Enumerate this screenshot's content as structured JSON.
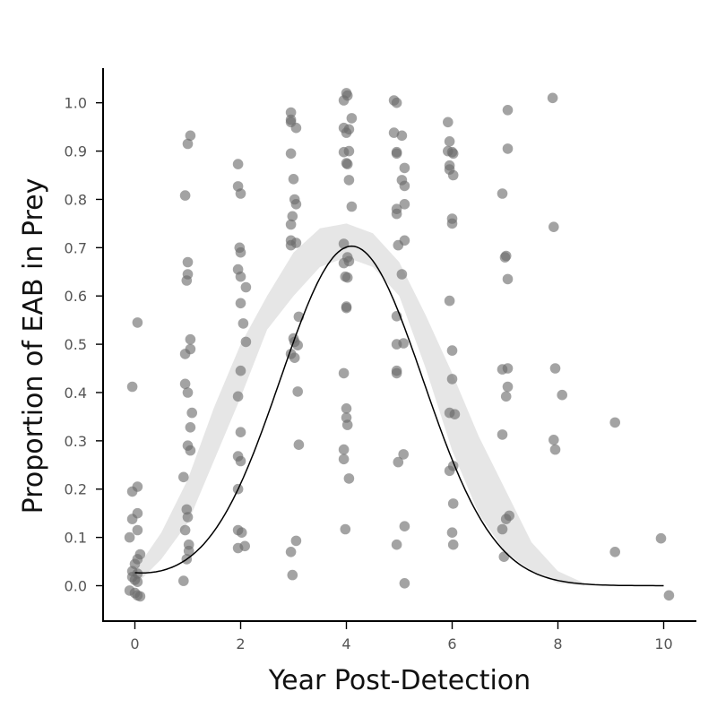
{
  "chart_data": {
    "type": "scatter",
    "title": "",
    "xlabel": "Year Post-Detection",
    "ylabel": "Proportion of EAB in Prey",
    "xlim": [
      -0.6,
      10.6
    ],
    "ylim": [
      -0.075,
      1.075
    ],
    "x_ticks": [
      0,
      2,
      4,
      6,
      8,
      10
    ],
    "y_ticks": [
      0.0,
      0.1,
      0.2,
      0.3,
      0.4,
      0.5,
      0.6,
      0.7,
      0.8,
      0.9,
      1.0
    ],
    "x_tick_labels": [
      "0",
      "2",
      "4",
      "6",
      "8",
      "10"
    ],
    "y_tick_labels": [
      "0.0",
      "0.1",
      "0.2",
      "0.3",
      "0.4",
      "0.5",
      "0.6",
      "0.7",
      "0.8",
      "0.9",
      "1.0"
    ],
    "grid": false,
    "colors": {
      "points": "#6b6b6b",
      "fit": "#000000",
      "ribbon": "#e6e6e6"
    },
    "points": [
      [
        -0.1,
        0.1
      ],
      [
        0.1,
        0.065
      ],
      [
        0.05,
        0.055
      ],
      [
        0.0,
        0.045
      ],
      [
        -0.05,
        0.03
      ],
      [
        0.05,
        0.025
      ],
      [
        -0.05,
        0.018
      ],
      [
        0.0,
        0.012
      ],
      [
        0.05,
        0.008
      ],
      [
        -0.1,
        -0.01
      ],
      [
        0.0,
        -0.015
      ],
      [
        0.05,
        -0.02
      ],
      [
        0.1,
        -0.022
      ],
      [
        -0.05,
        0.195
      ],
      [
        0.05,
        0.205
      ],
      [
        0.05,
        0.15
      ],
      [
        -0.05,
        0.138
      ],
      [
        0.05,
        0.115
      ],
      [
        0.05,
        0.545
      ],
      [
        -0.05,
        0.412
      ],
      [
        0.95,
        0.808
      ],
      [
        1.0,
        0.915
      ],
      [
        1.05,
        0.932
      ],
      [
        1.0,
        0.67
      ],
      [
        1.0,
        0.645
      ],
      [
        0.98,
        0.632
      ],
      [
        1.05,
        0.51
      ],
      [
        1.05,
        0.49
      ],
      [
        0.95,
        0.48
      ],
      [
        0.95,
        0.418
      ],
      [
        1.0,
        0.4
      ],
      [
        1.08,
        0.358
      ],
      [
        1.05,
        0.328
      ],
      [
        1.0,
        0.29
      ],
      [
        1.05,
        0.28
      ],
      [
        0.92,
        0.225
      ],
      [
        0.98,
        0.158
      ],
      [
        1.0,
        0.142
      ],
      [
        0.95,
        0.115
      ],
      [
        1.02,
        0.085
      ],
      [
        1.02,
        0.072
      ],
      [
        0.98,
        0.055
      ],
      [
        0.92,
        0.01
      ],
      [
        1.95,
        0.873
      ],
      [
        1.95,
        0.827
      ],
      [
        2.0,
        0.812
      ],
      [
        1.98,
        0.7
      ],
      [
        2.0,
        0.69
      ],
      [
        1.95,
        0.655
      ],
      [
        2.0,
        0.64
      ],
      [
        2.1,
        0.618
      ],
      [
        2.0,
        0.585
      ],
      [
        2.05,
        0.543
      ],
      [
        2.1,
        0.505
      ],
      [
        2.0,
        0.445
      ],
      [
        1.95,
        0.392
      ],
      [
        2.0,
        0.318
      ],
      [
        1.95,
        0.268
      ],
      [
        2.0,
        0.258
      ],
      [
        1.95,
        0.2
      ],
      [
        1.95,
        0.115
      ],
      [
        2.02,
        0.11
      ],
      [
        1.95,
        0.078
      ],
      [
        2.08,
        0.082
      ],
      [
        2.95,
        0.98
      ],
      [
        2.95,
        0.965
      ],
      [
        2.95,
        0.96
      ],
      [
        3.05,
        0.948
      ],
      [
        2.95,
        0.895
      ],
      [
        3.0,
        0.842
      ],
      [
        3.02,
        0.8
      ],
      [
        3.05,
        0.79
      ],
      [
        2.98,
        0.765
      ],
      [
        2.95,
        0.748
      ],
      [
        2.95,
        0.715
      ],
      [
        3.05,
        0.71
      ],
      [
        2.95,
        0.705
      ],
      [
        3.1,
        0.557
      ],
      [
        3.0,
        0.512
      ],
      [
        3.02,
        0.505
      ],
      [
        3.08,
        0.498
      ],
      [
        2.95,
        0.48
      ],
      [
        3.02,
        0.472
      ],
      [
        3.08,
        0.402
      ],
      [
        3.1,
        0.292
      ],
      [
        3.05,
        0.093
      ],
      [
        2.95,
        0.07
      ],
      [
        2.98,
        0.022
      ],
      [
        3.95,
        1.005
      ],
      [
        4.0,
        1.02
      ],
      [
        4.02,
        1.015
      ],
      [
        4.1,
        0.968
      ],
      [
        3.95,
        0.948
      ],
      [
        4.0,
        0.938
      ],
      [
        4.05,
        0.945
      ],
      [
        3.95,
        0.898
      ],
      [
        4.05,
        0.9
      ],
      [
        4.0,
        0.875
      ],
      [
        4.02,
        0.873
      ],
      [
        4.05,
        0.84
      ],
      [
        4.1,
        0.785
      ],
      [
        3.95,
        0.708
      ],
      [
        4.02,
        0.68
      ],
      [
        4.05,
        0.672
      ],
      [
        3.95,
        0.668
      ],
      [
        3.98,
        0.64
      ],
      [
        4.02,
        0.638
      ],
      [
        4.0,
        0.578
      ],
      [
        4.0,
        0.575
      ],
      [
        3.95,
        0.44
      ],
      [
        4.0,
        0.367
      ],
      [
        4.0,
        0.348
      ],
      [
        4.02,
        0.333
      ],
      [
        3.95,
        0.282
      ],
      [
        3.95,
        0.262
      ],
      [
        4.05,
        0.222
      ],
      [
        3.98,
        0.117
      ],
      [
        4.9,
        1.005
      ],
      [
        4.95,
        1.0
      ],
      [
        4.9,
        0.938
      ],
      [
        5.05,
        0.932
      ],
      [
        4.95,
        0.898
      ],
      [
        4.95,
        0.895
      ],
      [
        5.1,
        0.865
      ],
      [
        5.05,
        0.84
      ],
      [
        5.1,
        0.828
      ],
      [
        5.1,
        0.79
      ],
      [
        4.95,
        0.78
      ],
      [
        4.95,
        0.77
      ],
      [
        4.98,
        0.705
      ],
      [
        5.1,
        0.715
      ],
      [
        5.05,
        0.645
      ],
      [
        4.95,
        0.558
      ],
      [
        4.95,
        0.5
      ],
      [
        5.08,
        0.502
      ],
      [
        4.95,
        0.445
      ],
      [
        4.95,
        0.44
      ],
      [
        5.08,
        0.272
      ],
      [
        4.98,
        0.256
      ],
      [
        5.1,
        0.123
      ],
      [
        4.95,
        0.085
      ],
      [
        5.1,
        0.005
      ],
      [
        5.92,
        0.96
      ],
      [
        5.95,
        0.92
      ],
      [
        5.92,
        0.9
      ],
      [
        6.0,
        0.898
      ],
      [
        6.02,
        0.895
      ],
      [
        5.95,
        0.87
      ],
      [
        5.95,
        0.862
      ],
      [
        6.02,
        0.85
      ],
      [
        6.0,
        0.76
      ],
      [
        6.0,
        0.75
      ],
      [
        5.95,
        0.59
      ],
      [
        6.0,
        0.487
      ],
      [
        6.0,
        0.428
      ],
      [
        5.95,
        0.358
      ],
      [
        6.05,
        0.355
      ],
      [
        6.02,
        0.248
      ],
      [
        5.95,
        0.238
      ],
      [
        6.02,
        0.17
      ],
      [
        6.0,
        0.11
      ],
      [
        6.02,
        0.085
      ],
      [
        7.05,
        0.985
      ],
      [
        7.05,
        0.905
      ],
      [
        6.95,
        0.812
      ],
      [
        7.02,
        0.683
      ],
      [
        7.0,
        0.68
      ],
      [
        7.05,
        0.635
      ],
      [
        7.05,
        0.45
      ],
      [
        6.95,
        0.448
      ],
      [
        7.05,
        0.412
      ],
      [
        7.02,
        0.392
      ],
      [
        6.95,
        0.313
      ],
      [
        7.08,
        0.145
      ],
      [
        7.02,
        0.138
      ],
      [
        6.95,
        0.117
      ],
      [
        6.98,
        0.06
      ],
      [
        7.9,
        1.01
      ],
      [
        7.92,
        0.743
      ],
      [
        7.95,
        0.45
      ],
      [
        8.08,
        0.395
      ],
      [
        7.92,
        0.302
      ],
      [
        7.95,
        0.282
      ],
      [
        9.08,
        0.338
      ],
      [
        9.08,
        0.07
      ],
      [
        9.95,
        0.098
      ],
      [
        10.1,
        -0.02
      ]
    ],
    "fit": {
      "name": "",
      "peak_x": 4.1,
      "peak_y": 0.703,
      "baseline": 0.0,
      "spread": 1.35
    },
    "band": [
      [
        0.0,
        0.03,
        0.0
      ],
      [
        0.5,
        0.11,
        0.055
      ],
      [
        1.0,
        0.22,
        0.13
      ],
      [
        1.5,
        0.37,
        0.26
      ],
      [
        2.0,
        0.5,
        0.39
      ],
      [
        2.5,
        0.6,
        0.53
      ],
      [
        3.0,
        0.69,
        0.6
      ],
      [
        3.5,
        0.74,
        0.66
      ],
      [
        4.0,
        0.75,
        0.68
      ],
      [
        4.5,
        0.73,
        0.66
      ],
      [
        5.0,
        0.67,
        0.6
      ],
      [
        5.5,
        0.56,
        0.45
      ],
      [
        6.0,
        0.44,
        0.28
      ],
      [
        6.5,
        0.31,
        0.15
      ],
      [
        7.0,
        0.2,
        0.07
      ],
      [
        7.5,
        0.09,
        0.03
      ],
      [
        8.0,
        0.03,
        0.005
      ],
      [
        8.5,
        0.005,
        0.0
      ]
    ]
  }
}
